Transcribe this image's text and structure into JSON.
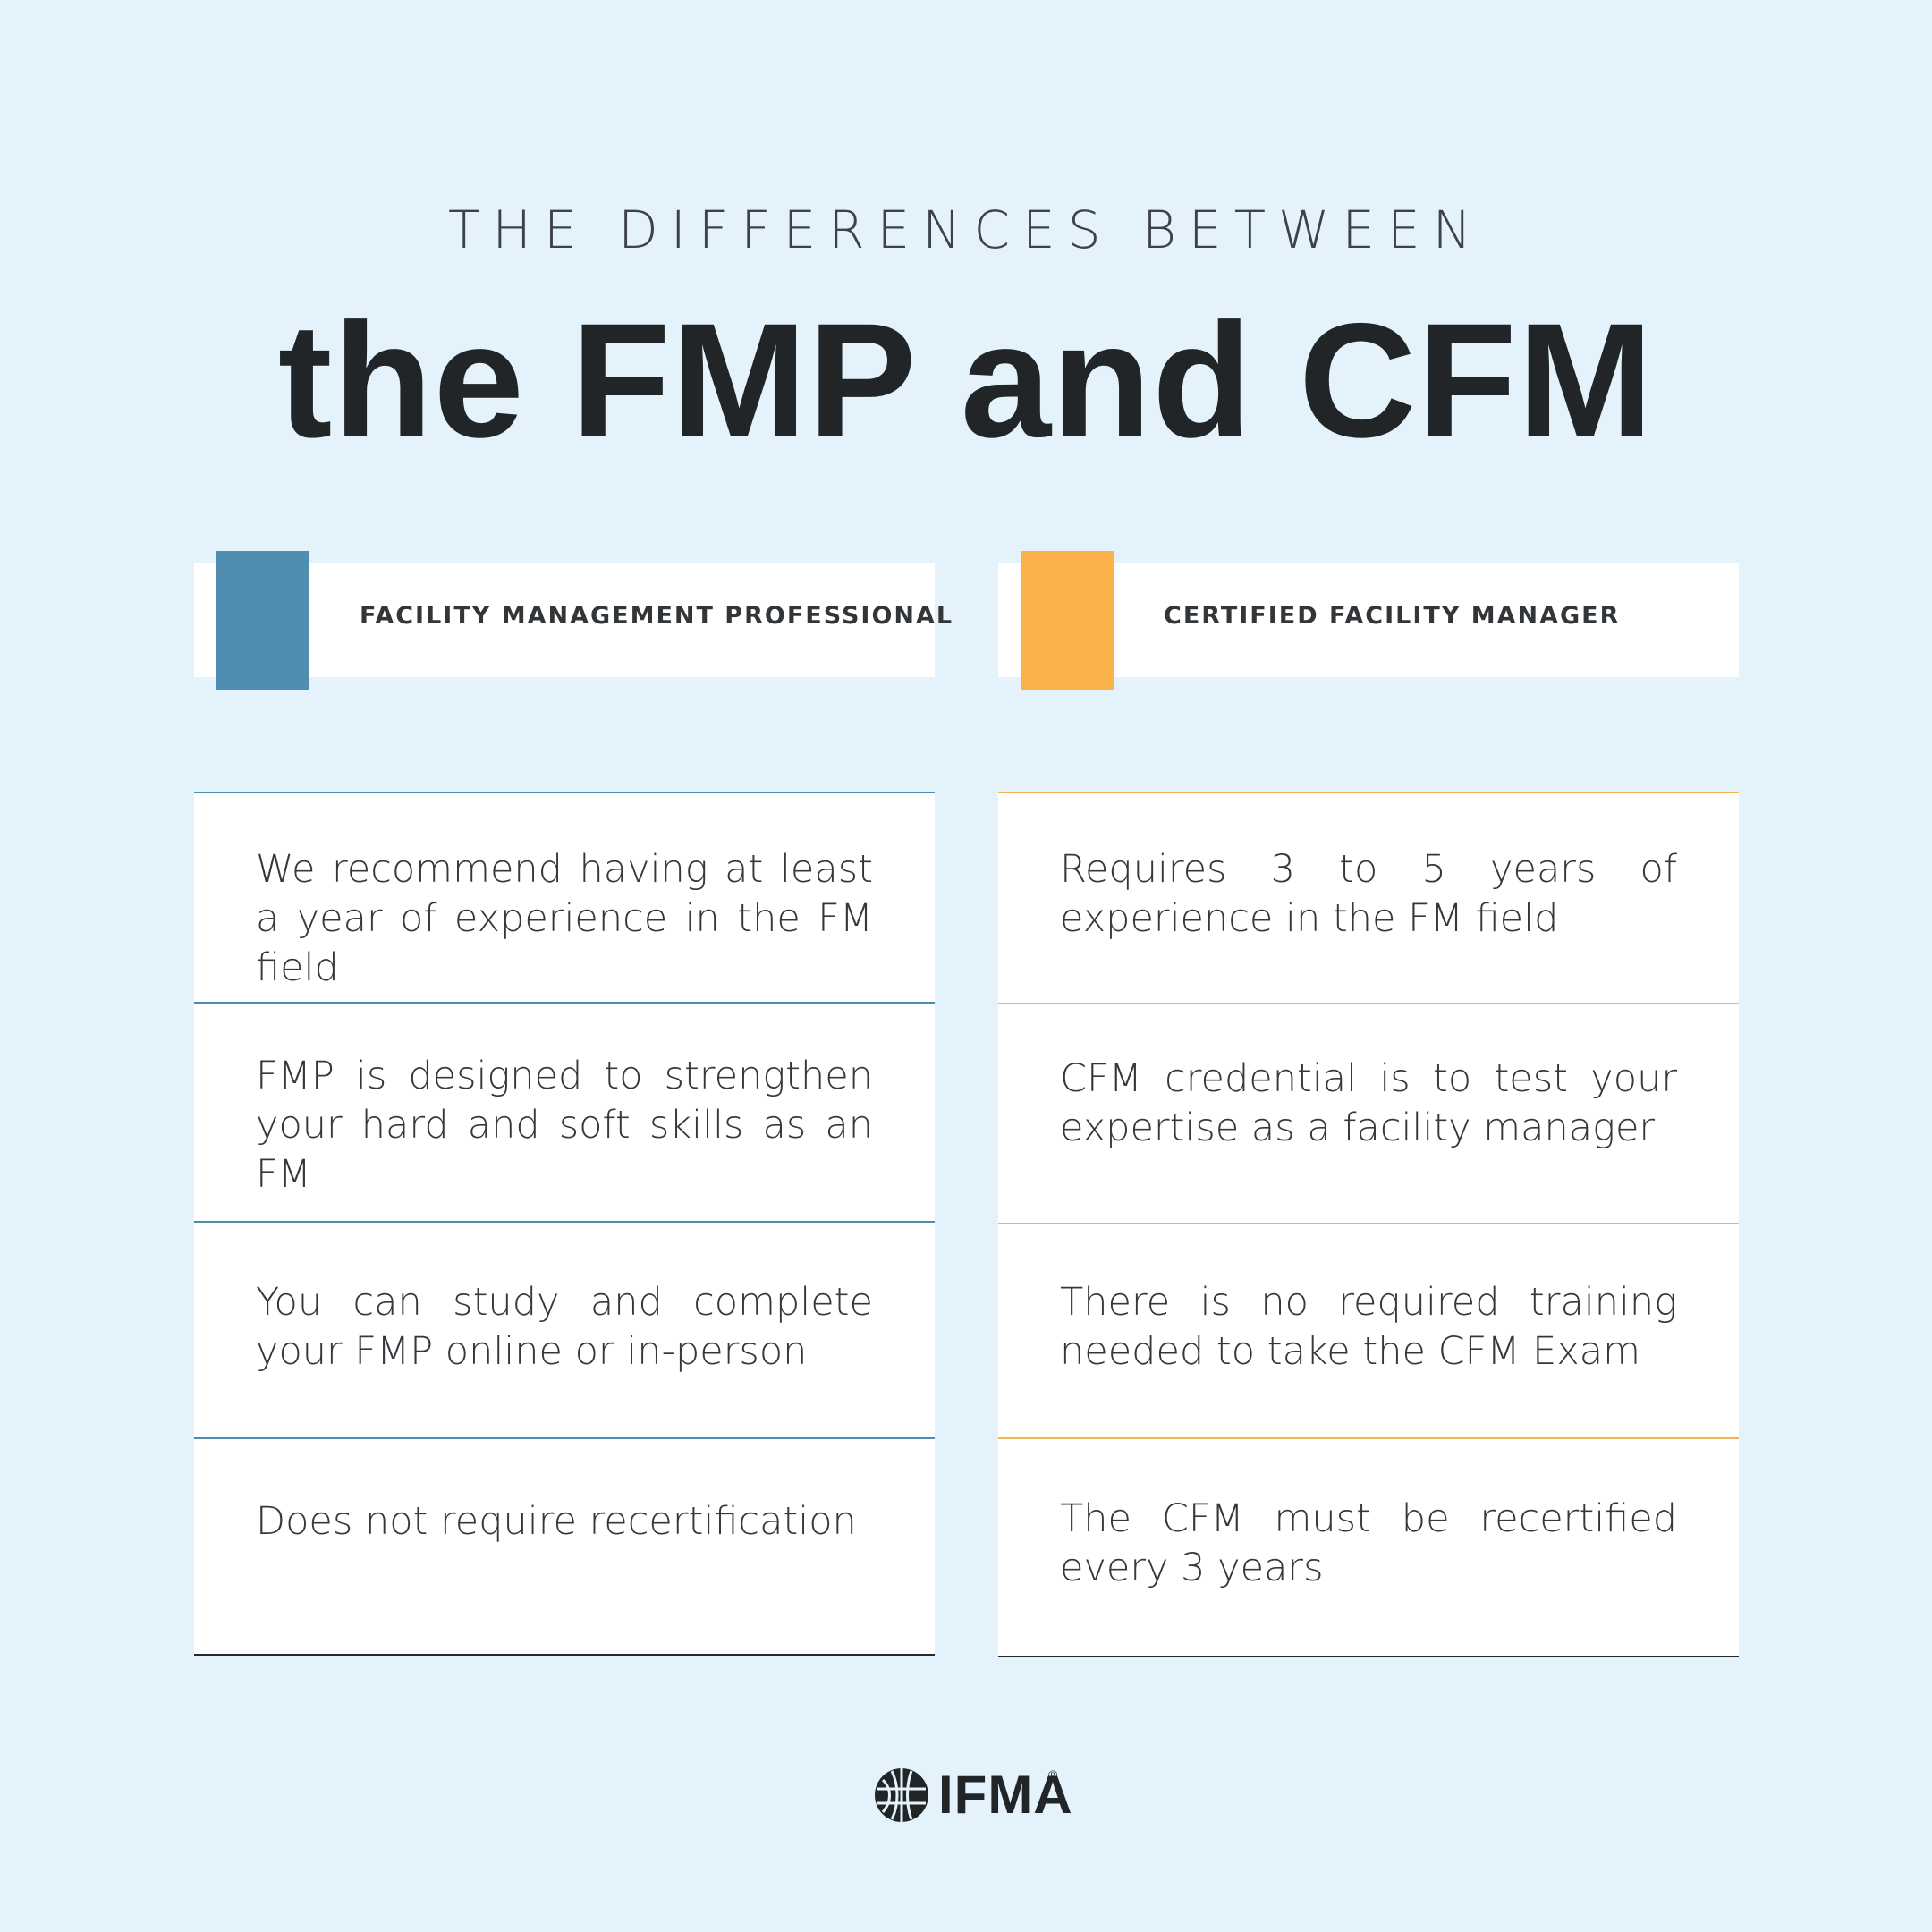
{
  "header": {
    "subtitle": "THE DIFFERENCES BETWEEN",
    "title": "the FMP and CFM"
  },
  "colors": {
    "background": "#e4f3fb",
    "fmp_accent": "#4f8eb1",
    "cfm_accent": "#fbb24b",
    "text_dark": "#222528"
  },
  "columns": [
    {
      "label": "FACILITY MANAGEMENT PROFESSIONAL",
      "rows": [
        "We recommend having at least a year of experience in the FM field",
        "FMP is designed to strengthen your hard and soft skills as an FM",
        "You can study and complete your FMP online  or in-person",
        "Does not require recertification"
      ]
    },
    {
      "label": "CERTIFIED FACILITY MANAGER",
      "rows": [
        "Requires 3 to 5 years of experience in the FM field",
        "CFM credential is to test your expertise as a facility manager",
        "There is no required training needed to take the CFM Exam",
        "The CFM must be recertified every 3 years"
      ]
    }
  ],
  "logo": {
    "text": "IFMA",
    "reg_mark": "®",
    "icon": "globe-icon"
  }
}
